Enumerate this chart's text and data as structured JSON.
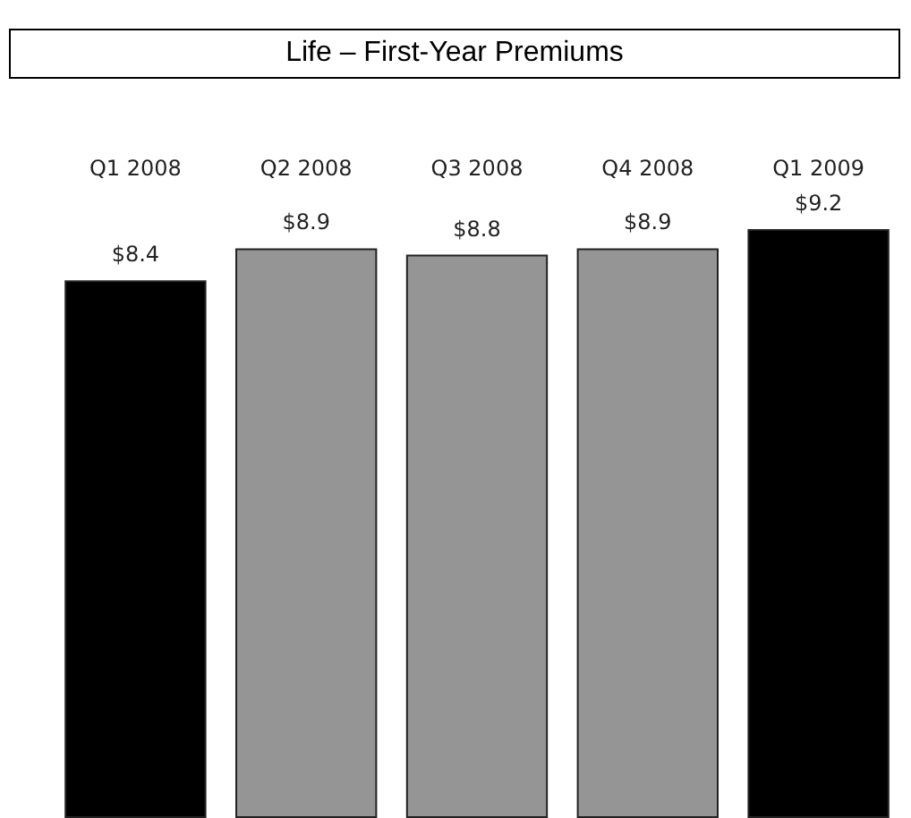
{
  "chart_data": {
    "type": "bar",
    "title": "Life – First-Year Premiums",
    "categories": [
      "Q1 2008",
      "Q2 2008",
      "Q3 2008",
      "Q4 2008",
      "Q1 2009"
    ],
    "values": [
      8.4,
      8.9,
      8.8,
      8.9,
      9.2
    ],
    "colors": [
      "#000000",
      "#959595",
      "#959595",
      "#959595",
      "#000000"
    ],
    "value_labels": [
      "$8.4",
      "$8.9",
      "$8.8",
      "$8.9",
      "$9.2"
    ]
  }
}
